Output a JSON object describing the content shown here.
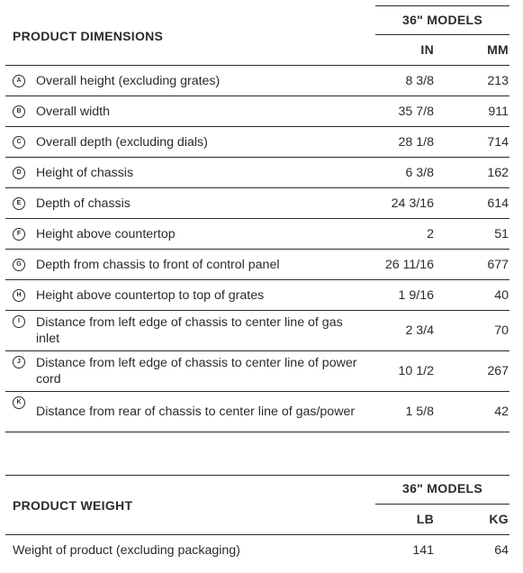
{
  "dimensions": {
    "title": "PRODUCT DIMENSIONS",
    "models": "36\" MODELS",
    "unit1": "IN",
    "unit2": "MM",
    "rows": [
      {
        "marker": "A",
        "label": "Overall height (excluding grates)",
        "in": "8 3/8",
        "mm": "213"
      },
      {
        "marker": "B",
        "label": "Overall width",
        "in": "35 7/8",
        "mm": "911"
      },
      {
        "marker": "C",
        "label": "Overall depth (excluding dials)",
        "in": "28 1/8",
        "mm": "714"
      },
      {
        "marker": "D",
        "label": "Height of chassis",
        "in": "6 3/8",
        "mm": "162"
      },
      {
        "marker": "E",
        "label": "Depth of chassis",
        "in": "24 3/16",
        "mm": "614"
      },
      {
        "marker": "F",
        "label": "Height above countertop",
        "in": "2",
        "mm": "51"
      },
      {
        "marker": "G",
        "label": "Depth from chassis to front of control panel",
        "in": "26 11/16",
        "mm": "677"
      },
      {
        "marker": "H",
        "label": "Height above countertop to top of grates",
        "in": "1 9/16",
        "mm": "40"
      },
      {
        "marker": "I",
        "label": "Distance from left edge of chassis to center line of gas inlet",
        "in": "2 3/4",
        "mm": "70"
      },
      {
        "marker": "J",
        "label": "Distance from left edge of chassis to center line of power cord",
        "in": "10 1/2",
        "mm": "267"
      },
      {
        "marker": "K",
        "label": "Distance from rear of chassis to center line of gas/power",
        "in": "1 5/8",
        "mm": "42"
      }
    ]
  },
  "weight": {
    "title": "PRODUCT WEIGHT",
    "models": "36\" MODELS",
    "unit1": "LB",
    "unit2": "KG",
    "rows": [
      {
        "label": "Weight of product (excluding packaging)",
        "lb": "141",
        "kg": "64"
      }
    ]
  }
}
